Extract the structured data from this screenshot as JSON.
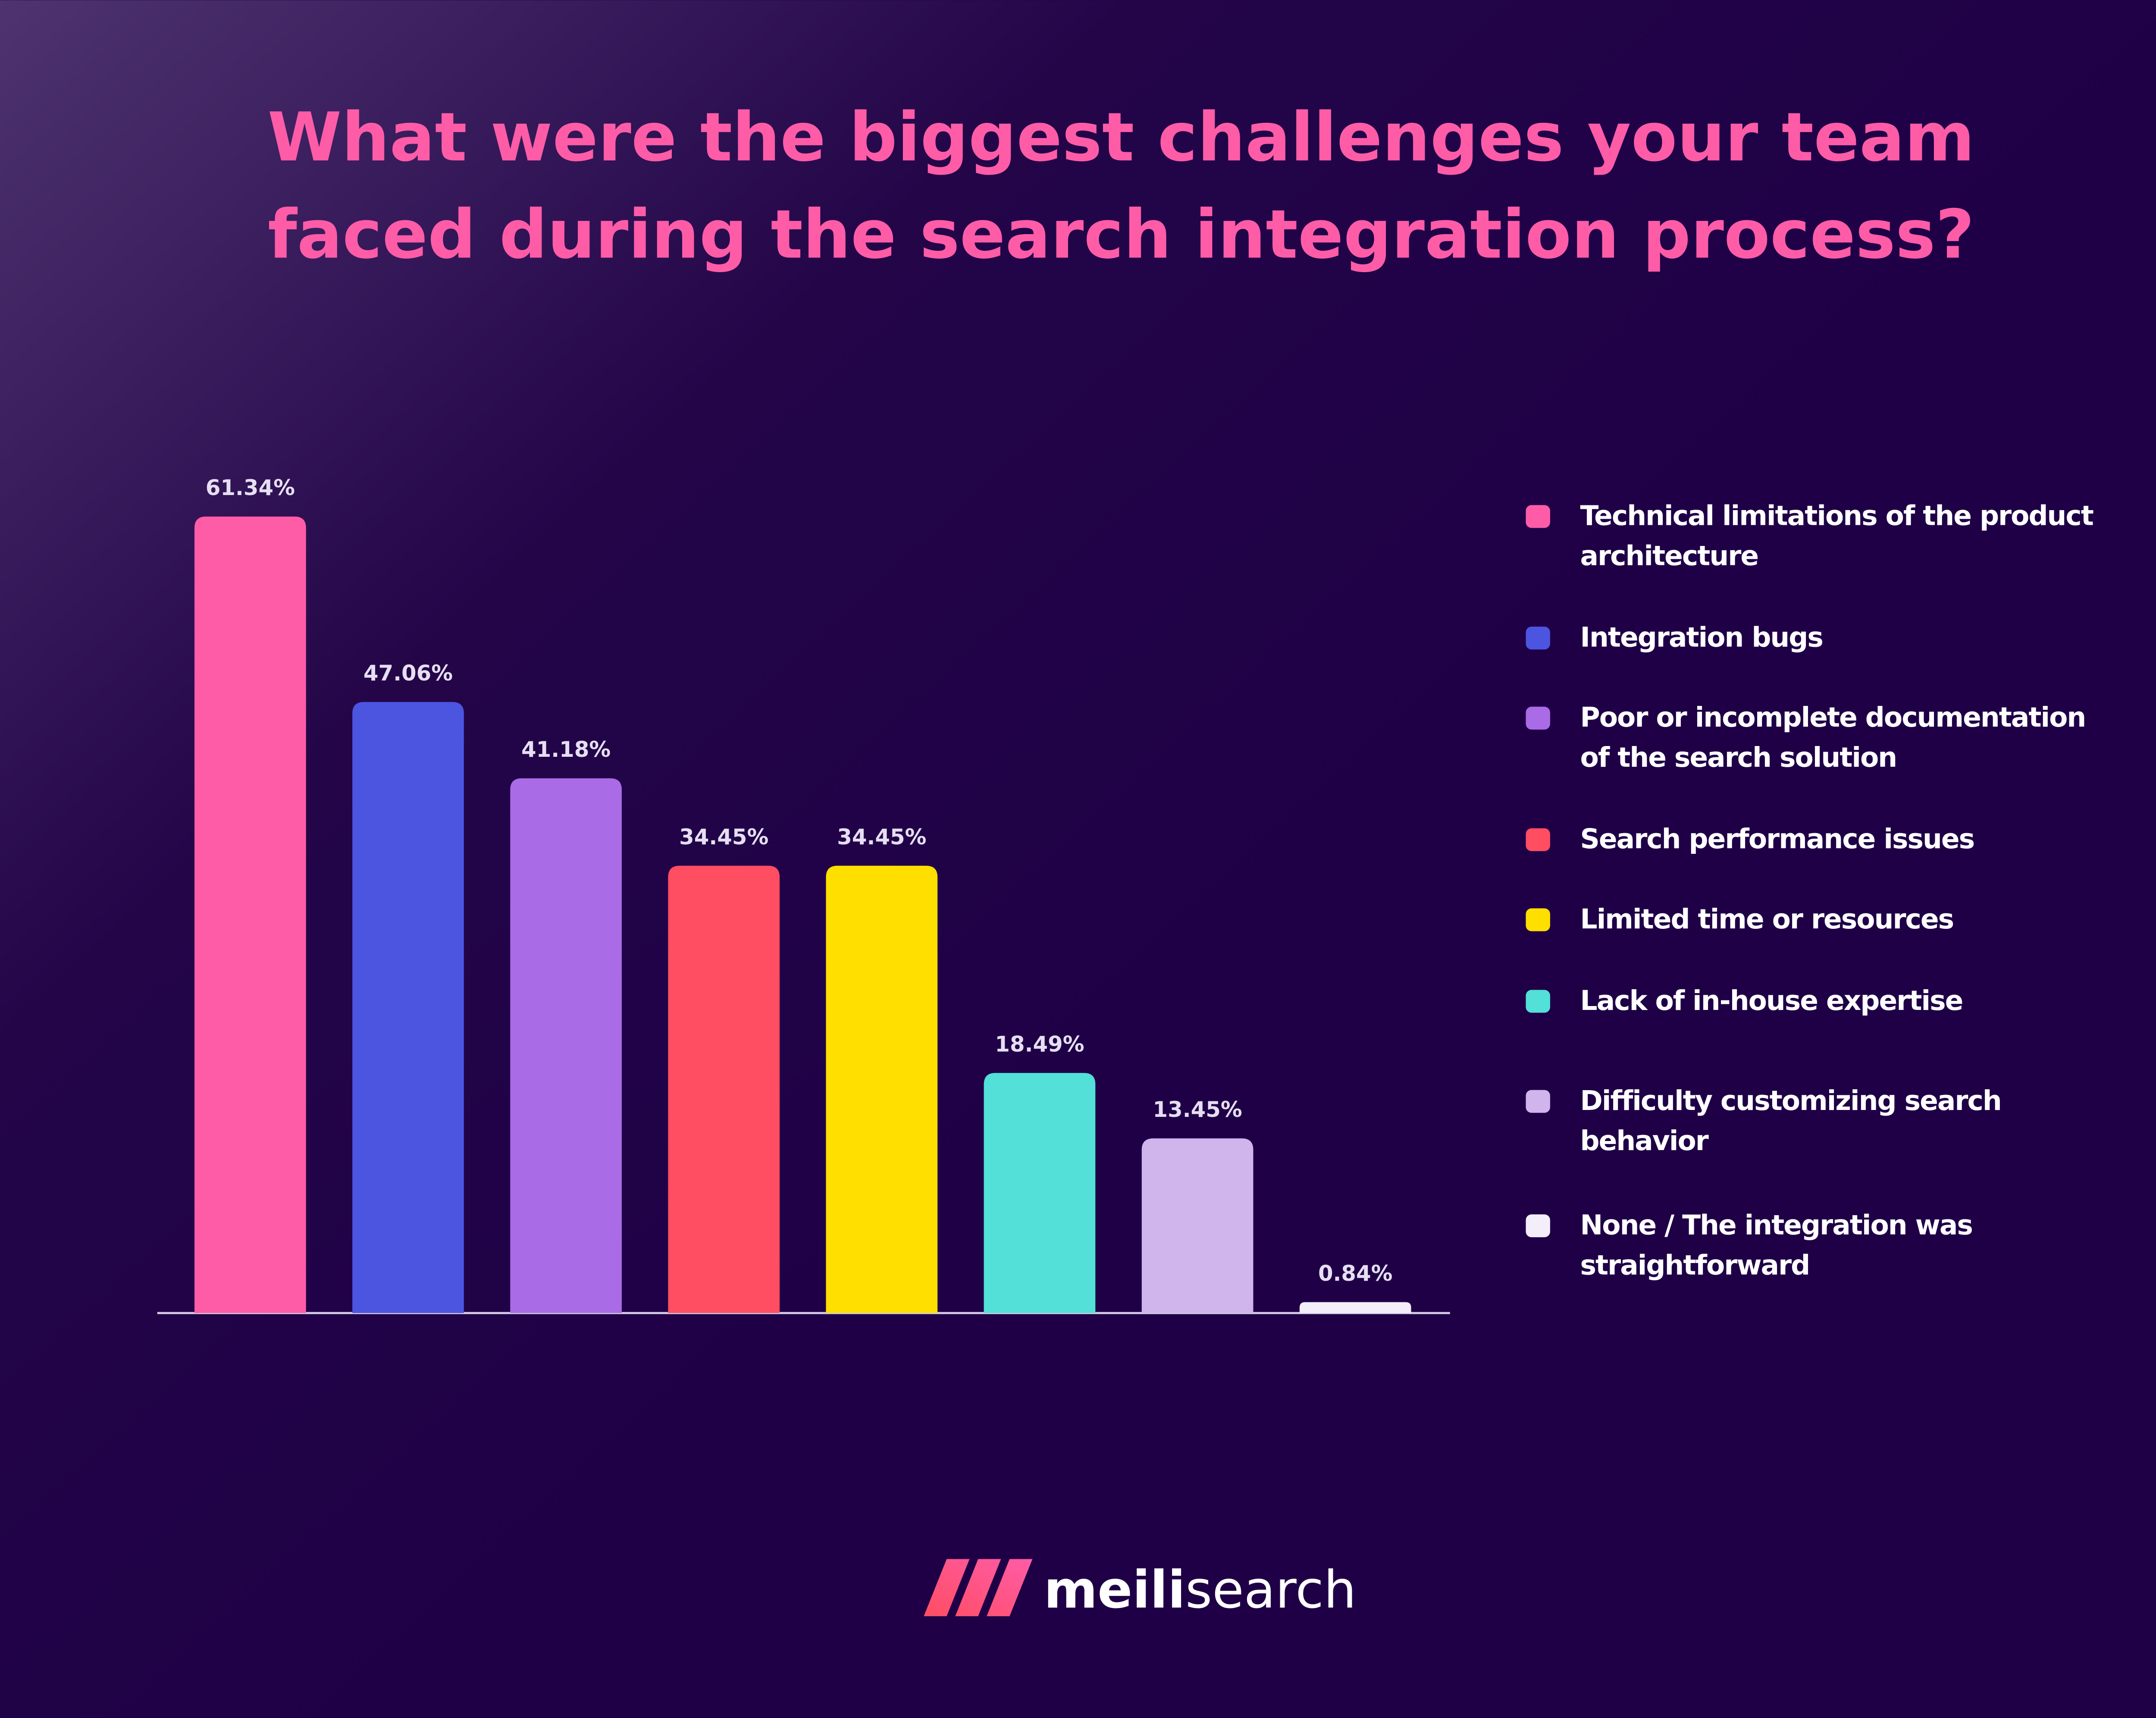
{
  "chart_data": {
    "type": "bar",
    "title": [
      "What were the biggest challenges your team",
      "faced during the search integration process?"
    ],
    "categories": [
      "Technical limitations of the product architecture",
      "Integration bugs",
      "Poor or incomplete documentation of the search solution",
      "Search performance issues",
      "Limited time or resources",
      "Lack of in-house expertise",
      "Difficulty customizing search behavior",
      "None / The integration was straightforward"
    ],
    "values": [
      61.34,
      47.06,
      41.18,
      34.45,
      34.45,
      18.49,
      13.45,
      0.84
    ],
    "value_labels": [
      "61.34%",
      "47.06%",
      "41.18%",
      "34.45%",
      "34.45%",
      "18.49%",
      "13.45%",
      "0.84%"
    ],
    "colors": [
      "#ff5ca8",
      "#4b55e0",
      "#aa6be6",
      "#ff4d62",
      "#ffdf00",
      "#52e0d8",
      "#d0b4ec",
      "#f3eefa"
    ],
    "legend": "right"
  },
  "logo": {
    "bold": "meili",
    "regular": "search"
  }
}
